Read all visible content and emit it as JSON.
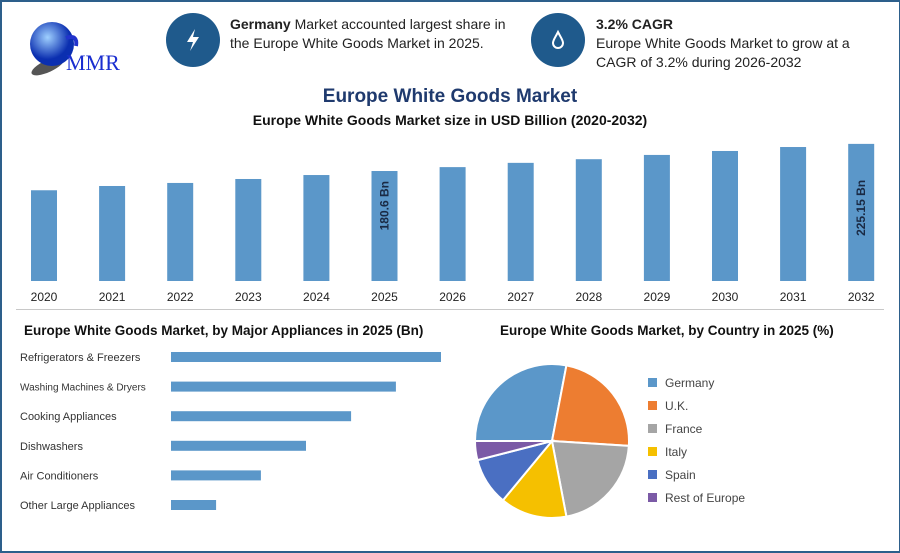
{
  "logo": {
    "text": "MMR"
  },
  "info1": {
    "bold": "Germany",
    "text": " Market accounted largest share in the Europe White Goods Market in 2025.",
    "icon": "lightning-icon"
  },
  "info2": {
    "title": "3.2% CAGR",
    "text": "Europe White Goods Market to grow at a CAGR of 3.2% during 2026-2032",
    "icon": "drop-icon"
  },
  "main_title": "Europe White Goods Market",
  "colors": {
    "bar": "#5b97c9",
    "accent": "#1f5a8c",
    "title": "#1f3a6e"
  },
  "chart_data": [
    {
      "type": "bar",
      "title": "Europe White Goods Market size in USD Billion (2020-2032)",
      "categories": [
        "2020",
        "2021",
        "2022",
        "2023",
        "2024",
        "2025",
        "2026",
        "2027",
        "2028",
        "2029",
        "2030",
        "2031",
        "2032"
      ],
      "values": [
        149,
        156,
        161,
        167.5,
        174,
        180.6,
        187,
        194,
        200,
        207,
        213.5,
        220,
        225.15
      ],
      "data_labels": {
        "2025": "180.6 Bn",
        "2032": "225.15 Bn"
      },
      "ylim": [
        0,
        230
      ],
      "grid": false
    },
    {
      "type": "bar",
      "orientation": "horizontal",
      "title": "Europe White Goods Market, by Major Appliances in 2025 (Bn)",
      "categories": [
        "Refrigerators & Freezers",
        "Washing Machines & Dryers",
        "Cooking Appliances",
        "Dishwashers",
        "Air Conditioners",
        "Other Large Appliances"
      ],
      "values": [
        100,
        83.3,
        66.7,
        50,
        33.3,
        16.7
      ],
      "grid": false
    },
    {
      "type": "pie",
      "title": "Europe White Goods Market, by Country in 2025 (%)",
      "categories": [
        "Germany",
        "U.K.",
        "France",
        "Italy",
        "Spain",
        "Rest of Europe"
      ],
      "values": [
        28,
        23,
        21,
        14,
        10,
        4
      ],
      "colors": [
        "#5b97c9",
        "#ed7d31",
        "#a5a5a5",
        "#f5c000",
        "#4a6fc2",
        "#7b5aa6"
      ],
      "legend": "right"
    }
  ]
}
